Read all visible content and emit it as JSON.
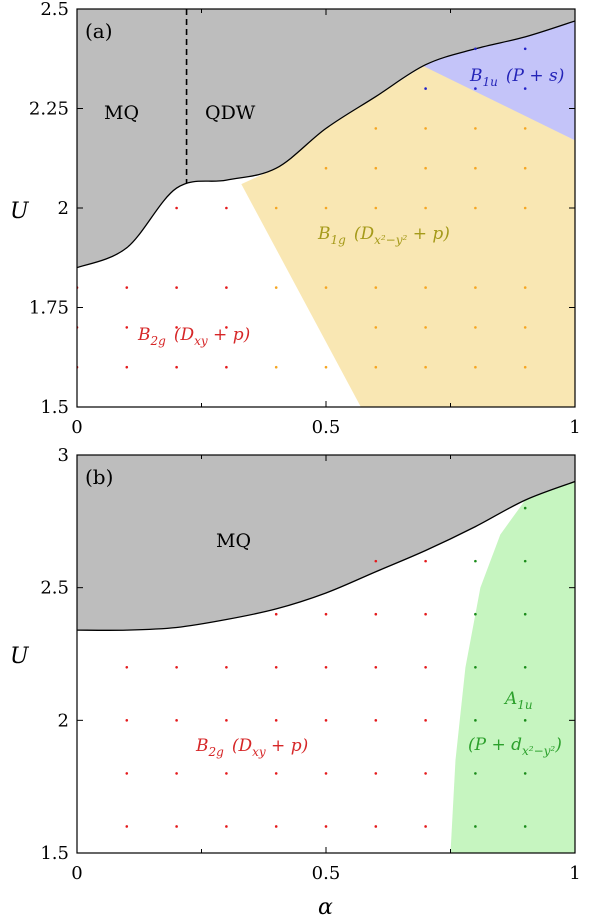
{
  "chart_data": [
    {
      "panel_label": "(a)",
      "type": "area",
      "xlabel": "",
      "ylabel": "U",
      "xlim": [
        0,
        1
      ],
      "ylim": [
        1.5,
        2.5
      ],
      "xticks": [
        0,
        0.5,
        1
      ],
      "xtick_labels": [
        "0",
        "0.5",
        "1"
      ],
      "yticks": [
        1.5,
        1.75,
        2,
        2.25,
        2.5
      ],
      "ytick_labels": [
        "1.5",
        "1.75",
        "2",
        "2.25",
        "2.5"
      ],
      "grid": false,
      "regions": [
        {
          "id": "mq",
          "label": "MQ",
          "color": "#bdbdbd",
          "boundary": [
            [
              0,
              1.85
            ],
            [
              0.1,
              1.9
            ],
            [
              0.2,
              2.05
            ],
            [
              0.3,
              2.07
            ],
            [
              0.4,
              2.1
            ],
            [
              0.5,
              2.2
            ],
            [
              0.6,
              2.28
            ],
            [
              0.7,
              2.36
            ],
            [
              0.8,
              2.4
            ],
            [
              0.9,
              2.43
            ],
            [
              1,
              2.47
            ]
          ]
        },
        {
          "id": "qdw",
          "label": "QDW",
          "color": "#bdbdbd",
          "divider_alpha": 0.22
        },
        {
          "id": "b1g",
          "label": "B1g (Dx²−y² + p)",
          "color": "#f9e7b3",
          "polygon": [
            [
              0.33,
              2.06
            ],
            [
              0.4,
              2.1
            ],
            [
              0.5,
              2.2
            ],
            [
              0.6,
              2.28
            ],
            [
              0.7,
              2.36
            ],
            [
              1,
              2.17
            ],
            [
              1,
              1.5
            ],
            [
              0.57,
              1.5
            ]
          ]
        },
        {
          "id": "b1u",
          "label": "B1u (P + s)",
          "color": "#c4c4f9",
          "polygon": [
            [
              0.69,
              2.36
            ],
            [
              0.8,
              2.4
            ],
            [
              0.9,
              2.43
            ],
            [
              1,
              2.47
            ],
            [
              1,
              2.17
            ]
          ]
        },
        {
          "id": "b2g",
          "label": "B2g (Dxy + p)",
          "color": "#ffffff"
        }
      ],
      "label_parts": {
        "b2g": {
          "main": "B",
          "sub": "2g",
          "body": "(D",
          "sub2": "xy",
          "tail": " + p)",
          "color": "#d62728"
        },
        "b1g": {
          "main": "B",
          "sub": "1g",
          "body": "(D",
          "sub2": "x²−y²",
          "tail": " + p)",
          "color": "#a59a1a"
        },
        "b1u": {
          "main": "B",
          "sub": "1u",
          "body": "(P + s)",
          "color": "#2424b8"
        }
      },
      "points": [
        {
          "series": "B2g",
          "color": "#e41a1c",
          "x": [
            0,
            0.1,
            0.2,
            0.3,
            0,
            0.1,
            0.2,
            0.3,
            0,
            0.1,
            0.2,
            0.3,
            0.2,
            0.3
          ],
          "y": [
            1.6,
            1.6,
            1.6,
            1.6,
            1.8,
            1.8,
            1.8,
            1.8,
            1.7,
            1.7,
            1.7,
            1.7,
            2.0,
            2.0
          ]
        },
        {
          "series": "B1g",
          "color": "#f5a623",
          "x": [
            0.4,
            0.5,
            0.6,
            0.7,
            0.8,
            0.9,
            0.4,
            0.5,
            0.6,
            0.7,
            0.8,
            0.9,
            0.4,
            0.5,
            0.6,
            0.7,
            0.8,
            0.9,
            0.5,
            0.6,
            0.7,
            0.8,
            0.9,
            0.6,
            0.7,
            0.8,
            0.9,
            0.6,
            0.7,
            0.8,
            0.9
          ],
          "y": [
            1.6,
            1.6,
            1.6,
            1.6,
            1.6,
            1.6,
            1.8,
            1.8,
            1.8,
            1.8,
            1.8,
            1.8,
            2.0,
            2.0,
            2.0,
            2.0,
            2.0,
            2.0,
            2.1,
            2.1,
            2.1,
            2.1,
            2.1,
            2.2,
            2.2,
            2.2,
            2.2,
            1.7,
            1.7,
            1.7,
            1.7
          ]
        },
        {
          "series": "B1u",
          "color": "#2323c8",
          "x": [
            0.8,
            0.9,
            0.7,
            0.8,
            0.9
          ],
          "y": [
            2.4,
            2.4,
            2.3,
            2.3,
            2.3
          ]
        }
      ]
    },
    {
      "panel_label": "(b)",
      "type": "area",
      "xlabel": "α",
      "ylabel": "U",
      "xlim": [
        0,
        1
      ],
      "ylim": [
        1.5,
        3
      ],
      "xticks": [
        0,
        0.5,
        1
      ],
      "xtick_labels": [
        "0",
        "0.5",
        "1"
      ],
      "yticks": [
        1.5,
        2,
        2.5,
        3
      ],
      "ytick_labels": [
        "1.5",
        "2",
        "2.5",
        "3"
      ],
      "grid": false,
      "regions": [
        {
          "id": "mq",
          "label": "MQ",
          "color": "#bdbdbd",
          "boundary": [
            [
              0,
              2.34
            ],
            [
              0.1,
              2.34
            ],
            [
              0.2,
              2.35
            ],
            [
              0.3,
              2.38
            ],
            [
              0.4,
              2.42
            ],
            [
              0.5,
              2.48
            ],
            [
              0.6,
              2.56
            ],
            [
              0.7,
              2.64
            ],
            [
              0.8,
              2.73
            ],
            [
              0.9,
              2.83
            ],
            [
              1,
              2.9
            ]
          ]
        },
        {
          "id": "a1u",
          "label": "A1u (P + dx²−y²)",
          "color": "#c6f5c0",
          "polygon": [
            [
              0.75,
              1.5
            ],
            [
              0.76,
              1.85
            ],
            [
              0.78,
              2.2
            ],
            [
              0.81,
              2.5
            ],
            [
              0.85,
              2.7
            ],
            [
              0.9,
              2.83
            ],
            [
              1,
              2.9
            ],
            [
              1,
              1.5
            ]
          ]
        },
        {
          "id": "b2g",
          "label": "B2g (Dxy + p)",
          "color": "#ffffff"
        }
      ],
      "label_parts": {
        "b2g": {
          "main": "B",
          "sub": "2g",
          "body": "(D",
          "sub2": "xy",
          "tail": " + p)",
          "color": "#d62728"
        },
        "a1u": {
          "main": "A",
          "sub": "1u",
          "body": "(P + d",
          "sub2": "x²−y²",
          "tail": ")",
          "color": "#2ca02c"
        }
      },
      "points": [
        {
          "series": "B2g",
          "color": "#e41a1c",
          "x": [
            0.1,
            0.2,
            0.3,
            0.4,
            0.5,
            0.6,
            0.7,
            0.1,
            0.2,
            0.3,
            0.4,
            0.5,
            0.6,
            0.7,
            0.1,
            0.2,
            0.3,
            0.4,
            0.5,
            0.6,
            0.7,
            0.1,
            0.2,
            0.3,
            0.4,
            0.5,
            0.6,
            0.7,
            0.4,
            0.5,
            0.6,
            0.7,
            0.6,
            0.7
          ],
          "y": [
            1.6,
            1.6,
            1.6,
            1.6,
            1.6,
            1.6,
            1.6,
            1.8,
            1.8,
            1.8,
            1.8,
            1.8,
            1.8,
            1.8,
            2.0,
            2.0,
            2.0,
            2.0,
            2.0,
            2.0,
            2.0,
            2.2,
            2.2,
            2.2,
            2.2,
            2.2,
            2.2,
            2.2,
            2.4,
            2.4,
            2.4,
            2.4,
            2.6,
            2.6
          ]
        },
        {
          "series": "A1u",
          "color": "#1a8c1a",
          "x": [
            0.8,
            0.9,
            0.8,
            0.9,
            0.8,
            0.9,
            0.8,
            0.9,
            0.8,
            0.9,
            0.8,
            0.9,
            0.9
          ],
          "y": [
            1.6,
            1.6,
            1.8,
            1.8,
            2.0,
            2.0,
            2.2,
            2.2,
            2.4,
            2.4,
            2.6,
            2.6,
            2.8
          ]
        }
      ]
    }
  ]
}
